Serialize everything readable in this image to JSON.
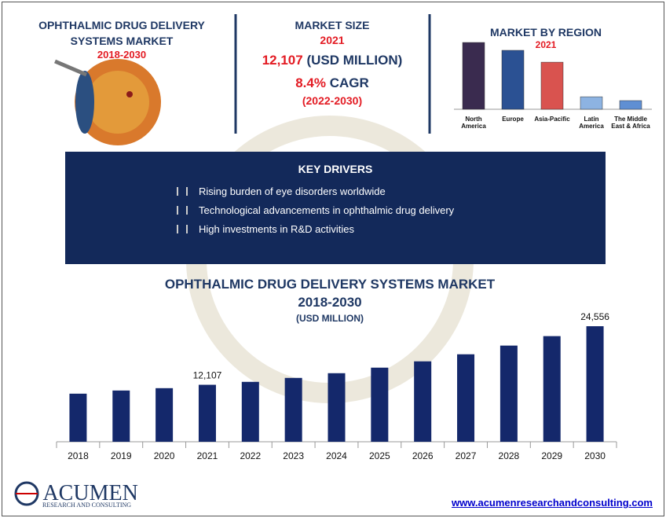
{
  "header": {
    "title": "OPHTHALMIC DRUG DELIVERY SYSTEMS MARKET",
    "period": "2018-2030"
  },
  "market_size": {
    "label": "MARKET SIZE",
    "year": "2021",
    "value": "12,107",
    "unit": "(USD MILLION)",
    "cagr": "8.4%",
    "cagr_label": "CAGR",
    "cagr_period": "(2022-2030)"
  },
  "key_drivers": {
    "title": "KEY DRIVERS",
    "items": [
      "Rising burden of eye disorders worldwide",
      "Technological advancements in ophthalmic drug delivery",
      "High investments in R&D activities"
    ]
  },
  "chart_data": [
    {
      "type": "bar",
      "title": "MARKET BY REGION",
      "subtitle": "2021",
      "categories": [
        "North America",
        "Europe",
        "Asia-Pacific",
        "Latin America",
        "The Middle East & Africa"
      ],
      "values": [
        4170,
        3680,
        2940,
        780,
        540
      ],
      "colors": [
        "#3a2b4f",
        "#2b5193",
        "#d9534f",
        "#8db3e2",
        "#5f8fd3"
      ],
      "ylim": [
        0,
        4500
      ]
    },
    {
      "type": "bar",
      "title": "OPHTHALMIC DRUG DELIVERY SYSTEMS MARKET",
      "subtitle": "2018-2030",
      "y_label": "(USD MILLION)",
      "categories": [
        "2018",
        "2019",
        "2020",
        "2021",
        "2022",
        "2023",
        "2024",
        "2025",
        "2026",
        "2027",
        "2028",
        "2029",
        "2030"
      ],
      "values": [
        10220,
        10890,
        11390,
        12107,
        12730,
        13570,
        14570,
        15750,
        17090,
        18590,
        20440,
        22450,
        24556
      ],
      "value_labels": [
        null,
        null,
        null,
        "12,107",
        null,
        null,
        null,
        null,
        null,
        null,
        null,
        null,
        "24,556"
      ],
      "color": "#14286b",
      "ylim": [
        0,
        28000
      ]
    }
  ],
  "footer": {
    "logo": "ACUMEN",
    "logo_sub": "RESEARCH AND CONSULTING",
    "url": "www.acumenresearchandconsulting.com"
  }
}
